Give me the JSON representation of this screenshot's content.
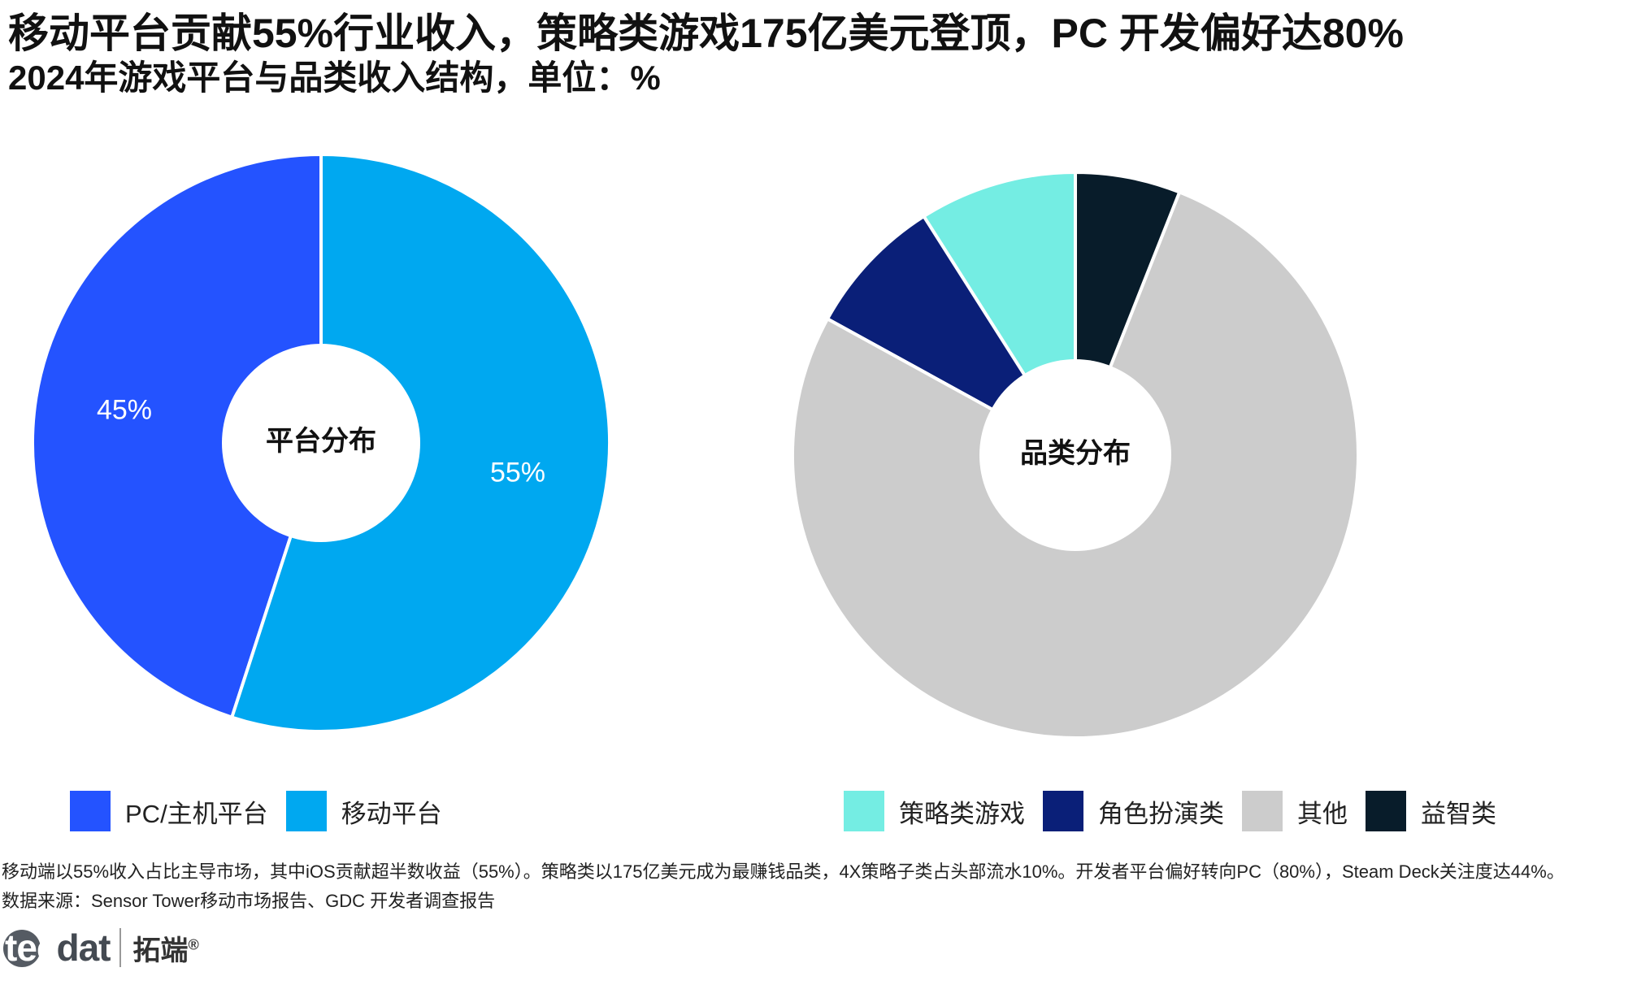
{
  "title": "移动平台贡献55%行业收入，策略类游戏175亿美元登顶，PC 开发偏好达80%",
  "subtitle": "2024年游戏平台与品类收入结构，单位：%",
  "chart_data": [
    {
      "type": "pie",
      "variant": "donut",
      "center_label": "平台分布",
      "categories": [
        "PC/主机平台",
        "移动平台"
      ],
      "values": [
        45,
        55
      ],
      "data_labels": [
        "45%",
        "55%"
      ],
      "colors": [
        "#2453ff",
        "#00a8f0"
      ],
      "start_angle_deg": 0,
      "direction": "counterclockwise-from-top",
      "label_color": "#ffffff",
      "legend_position": "bottom"
    },
    {
      "type": "pie",
      "variant": "donut",
      "center_label": "品类分布",
      "categories": [
        "策略类游戏",
        "角色扮演类",
        "其他",
        "益智类"
      ],
      "values": [
        9,
        8,
        77,
        6
      ],
      "colors": [
        "#74ede3",
        "#0a1f78",
        "#cccccc",
        "#081c2a"
      ],
      "start_angle_deg": 0,
      "direction": "counterclockwise-from-top",
      "legend_position": "bottom"
    }
  ],
  "notes": {
    "line1": "移动端以55%收入占比主导市场，其中iOS贡献超半数收益（55%）。策略类以175亿美元成为最赚钱品类，4X策略子类占头部流水10%。开发者平台偏好转向PC（80%），Steam Deck关注度达44%。",
    "line2": "数据来源：Sensor Tower移动市场报告、GDC 开发者调查报告"
  },
  "logo": {
    "wordmark_a": "tec",
    "wordmark_b": "dat",
    "cn": "拓端",
    "mark": "®"
  }
}
